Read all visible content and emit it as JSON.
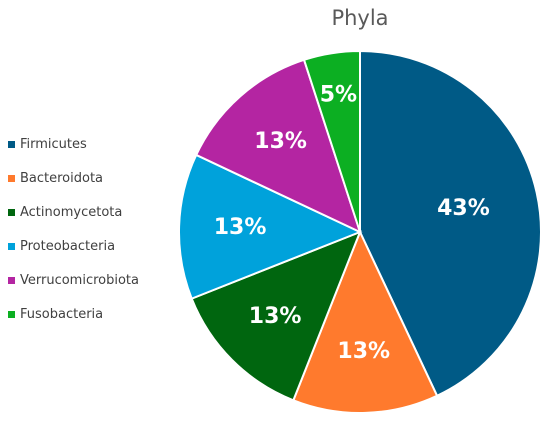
{
  "chart_data": {
    "type": "pie",
    "title": "Phyla",
    "legend_position": "left",
    "start_angle": "12 o'clock, clockwise",
    "slices": [
      {
        "label": "Firmicutes",
        "value": 43,
        "display": "43%",
        "color": "#005A86"
      },
      {
        "label": "Bacteroidota",
        "value": 13,
        "display": "13%",
        "color": "#FF7A2D"
      },
      {
        "label": "Actinomycetota",
        "value": 13,
        "display": "13%",
        "color": "#00660F"
      },
      {
        "label": "Proteobacteria",
        "value": 13,
        "display": "13%",
        "color": "#00A2DB"
      },
      {
        "label": "Verrucomicrobiota",
        "value": 13,
        "display": "13%",
        "color": "#B425A2"
      },
      {
        "label": "Fusobacteria",
        "value": 5,
        "display": "5%",
        "color": "#0CAF22"
      }
    ]
  }
}
